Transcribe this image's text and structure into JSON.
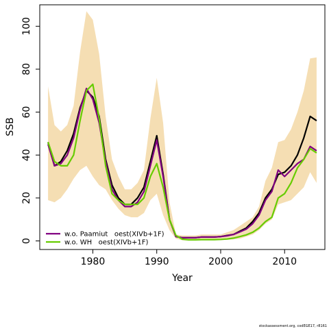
{
  "chart_data": {
    "type": "line",
    "xlabel": "Year",
    "ylabel": "SSB",
    "xlim": [
      1971.7,
      2016.3
    ],
    "ylim": [
      -4,
      110
    ],
    "x_ticks": [
      1980,
      1990,
      2000,
      2010
    ],
    "y_ticks": [
      0,
      20,
      40,
      60,
      80,
      100
    ],
    "grid": false,
    "legend_position": "bottom-left",
    "x": [
      1973,
      1974,
      1975,
      1976,
      1977,
      1978,
      1979,
      1980,
      1981,
      1982,
      1983,
      1984,
      1985,
      1986,
      1987,
      1988,
      1989,
      1990,
      1991,
      1992,
      1993,
      1994,
      1995,
      1996,
      1997,
      1998,
      1999,
      2000,
      2001,
      2002,
      2003,
      2004,
      2005,
      2006,
      2007,
      2008,
      2009,
      2010,
      2011,
      2012,
      2013,
      2014,
      2015
    ],
    "band": {
      "color": "#f5deb3",
      "upper": [
        72,
        54,
        51,
        54,
        63,
        88,
        107,
        103,
        87,
        58,
        38,
        30,
        24,
        24,
        27,
        33,
        57,
        76,
        55,
        18,
        3,
        2.5,
        2.5,
        2.5,
        3,
        3,
        3,
        3,
        4,
        5,
        7,
        9,
        11,
        16,
        28,
        34,
        46,
        47,
        52,
        60,
        70,
        85,
        85.5
      ],
      "lower": [
        19,
        18,
        20,
        24,
        29,
        33,
        35,
        30,
        26,
        24,
        19,
        15,
        12,
        11,
        11,
        13,
        19,
        22,
        12,
        5,
        1,
        0.3,
        0.2,
        0.2,
        0.3,
        0.3,
        0.3,
        0.4,
        0.5,
        0.7,
        1,
        2,
        3,
        5,
        8,
        10,
        17,
        18,
        19,
        22,
        25,
        32,
        27
      ]
    },
    "series": [
      {
        "key": "base",
        "color": "#000000",
        "values": [
          46,
          35,
          37,
          42,
          50,
          62,
          70,
          67,
          58,
          38,
          26,
          20,
          17,
          17,
          20,
          25,
          37,
          49,
          31,
          10,
          2,
          1.5,
          1.5,
          1.5,
          1.8,
          1.8,
          1.8,
          2,
          2.5,
          3,
          4.5,
          6,
          9,
          13,
          20,
          24,
          31,
          32,
          35,
          40,
          48,
          58,
          56
        ]
      },
      {
        "name": "w.o. Paamiut   oest(XIVb+1F)",
        "key": "paamiut",
        "color": "#800080",
        "values": [
          45,
          35,
          36,
          40,
          48,
          61,
          71,
          66,
          55,
          37,
          24,
          19,
          16,
          16,
          18,
          23,
          35,
          47,
          30,
          10,
          2,
          1.5,
          1.5,
          1.5,
          1.8,
          1.8,
          1.8,
          2,
          2.4,
          3,
          4.2,
          5.5,
          8,
          12,
          19,
          23,
          33,
          30,
          33,
          36,
          38,
          44,
          42
        ]
      },
      {
        "name": "w.o. WH   oest(XIVb+1F)",
        "key": "wh",
        "color": "#66cc00",
        "values": [
          46,
          37,
          35,
          35,
          40,
          56,
          70,
          73,
          57,
          35,
          22,
          19,
          17,
          17,
          17,
          20,
          30,
          36,
          25,
          10,
          2.5,
          0.8,
          0.5,
          0.5,
          0.6,
          0.6,
          0.6,
          0.7,
          0.9,
          1.3,
          2,
          2.8,
          4,
          6,
          9,
          11,
          20,
          22,
          27,
          34,
          38,
          43,
          41
        ]
      }
    ]
  },
  "footer": "stockassessment.org, codEGE17, r8161"
}
